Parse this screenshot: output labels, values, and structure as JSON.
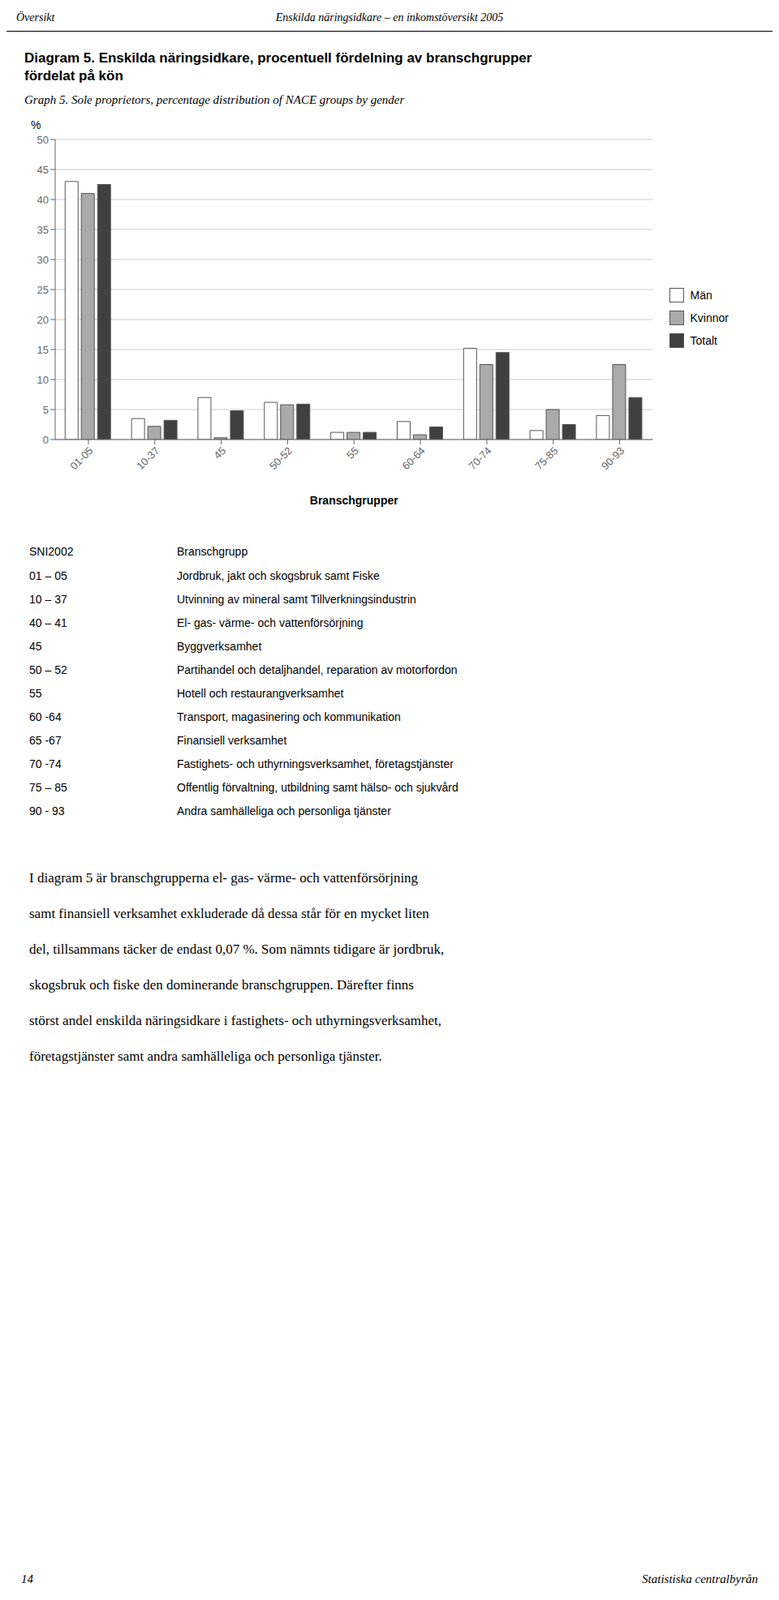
{
  "header": [
    "Översikt",
    "Enskilda näringsidkare – en inkomstöversikt 2005"
  ],
  "chart_data": {
    "type": "bar",
    "title": "Diagram 5. Enskilda näringsidkare, procentuell fördelning av branschgrupper\nfördelat på kön",
    "subtitle": "Graph 5. Sole proprietors, percentage distribution of NACE groups by gender",
    "ylabel": "%",
    "xlabel": "Branschgrupper",
    "ylim": [
      0,
      50
    ],
    "yticks": [
      0,
      5,
      10,
      15,
      20,
      25,
      30,
      35,
      40,
      45,
      50
    ],
    "grid": true,
    "legend": "right",
    "categories": [
      "01-05",
      "10-37",
      "45",
      "50-52",
      "55",
      "60-64",
      "70-74",
      "75-85",
      "90-93"
    ],
    "series": [
      {
        "name": "Män",
        "color": "#ffffff",
        "values": [
          43.0,
          3.5,
          7.0,
          6.2,
          1.2,
          3.0,
          15.2,
          1.5,
          4.0
        ]
      },
      {
        "name": "Kvinnor",
        "color": "#aaaaaa",
        "values": [
          41.0,
          2.2,
          0.3,
          5.8,
          1.2,
          0.8,
          12.5,
          5.0,
          12.5
        ]
      },
      {
        "name": "Totalt",
        "color": "#404040",
        "values": [
          42.5,
          3.2,
          4.8,
          5.9,
          1.2,
          2.1,
          14.5,
          2.5,
          7.0
        ]
      }
    ]
  },
  "table": {
    "header": [
      "SNI2002",
      "Branschgrupp"
    ],
    "rows": [
      [
        "01 – 05",
        "Jordbruk, jakt och skogsbruk samt Fiske"
      ],
      [
        "10 – 37",
        "Utvinning av mineral samt Tillverkningsindustrin"
      ],
      [
        "40 – 41",
        "El- gas- värme- och vattenförsörjning"
      ],
      [
        "45",
        "Byggverksamhet"
      ],
      [
        "50 – 52",
        "Partihandel och detaljhandel, reparation av motorfordon"
      ],
      [
        "55",
        "Hotell och restaurangverksamhet"
      ],
      [
        "60 -64",
        "Transport, magasinering och kommunikation"
      ],
      [
        "65 -67",
        "Finansiell verksamhet"
      ],
      [
        "70 -74",
        "Fastighets- och uthyrningsverksamhet, företagstjänster"
      ],
      [
        "75 – 85",
        "Offentlig förvaltning, utbildning samt hälso- och sjukvård"
      ],
      [
        "90 - 93",
        "Andra samhälleliga och personliga tjänster"
      ]
    ]
  },
  "body": [
    "I diagram 5 är branschgrupperna el- gas- värme- och vattenförsörjning",
    "samt finansiell verksamhet exkluderade då dessa står för en mycket liten",
    "del, tillsammans täcker de endast 0,07 %. Som nämnts tidigare är jordbruk,",
    "skogsbruk och fiske den dominerande branschgruppen. Därefter finns",
    "störst andel enskilda näringsidkare i fastighets- och uthyrningsverksamhet,",
    "företagstjänster samt andra samhälleliga och personliga tjänster."
  ],
  "footer": [
    "14",
    "Statistiska centralbyrån"
  ]
}
